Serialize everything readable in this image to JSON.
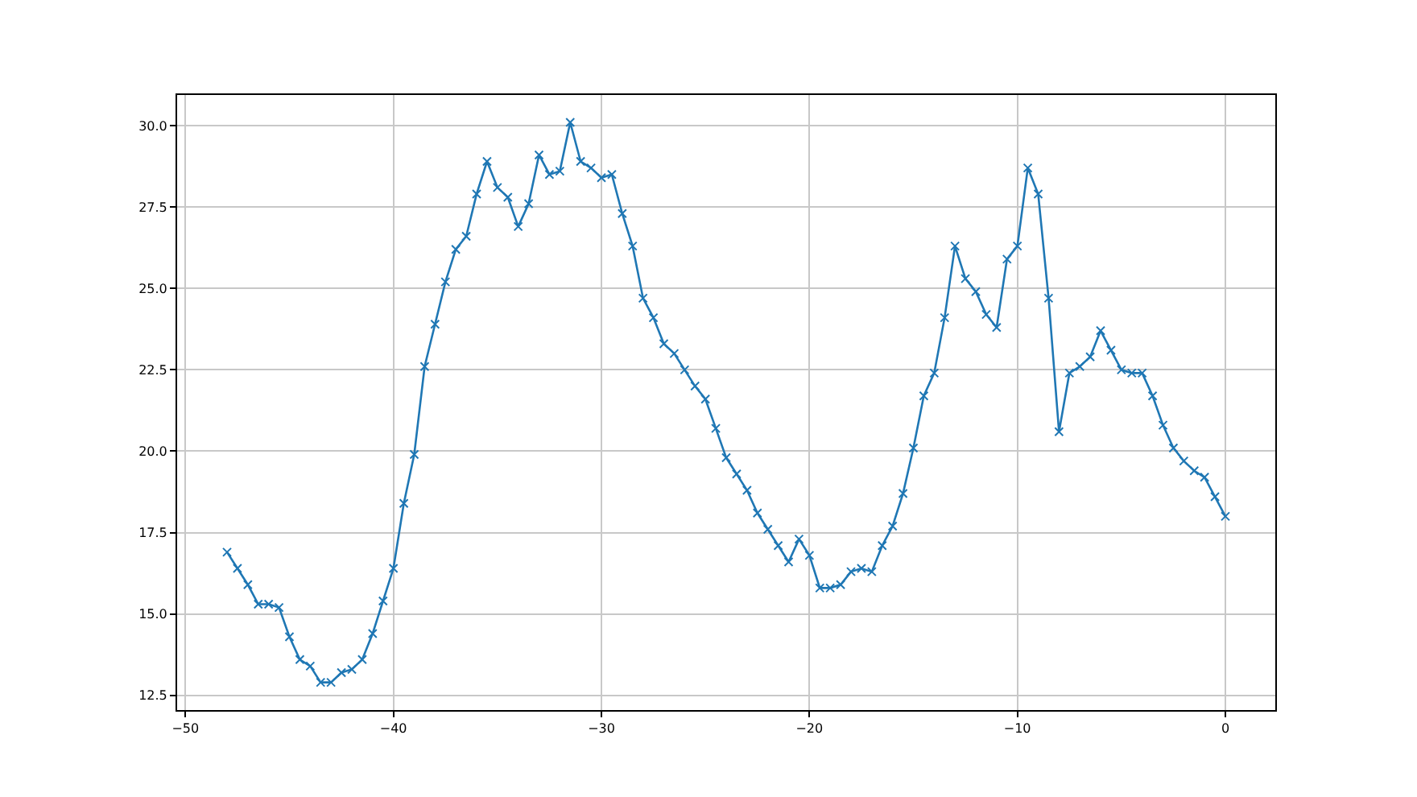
{
  "chart_data": {
    "type": "line",
    "x": [
      -48,
      -47.5,
      -47,
      -46.5,
      -46,
      -45.5,
      -45,
      -44.5,
      -44,
      -43.5,
      -43,
      -42.5,
      -42,
      -41.5,
      -41,
      -40.5,
      -40,
      -39.5,
      -39,
      -38.5,
      -38,
      -37.5,
      -37,
      -36.5,
      -36,
      -35.5,
      -35,
      -34.5,
      -34,
      -33.5,
      -33,
      -32.5,
      -32,
      -31.5,
      -31,
      -30.5,
      -30,
      -29.5,
      -29,
      -28.5,
      -28,
      -27.5,
      -27,
      -26.5,
      -26,
      -25.5,
      -25,
      -24.5,
      -24,
      -23.5,
      -23,
      -22.5,
      -22,
      -21.5,
      -21,
      -20.5,
      -20,
      -19.5,
      -19,
      -18.5,
      -18,
      -17.5,
      -17,
      -16.5,
      -16,
      -15.5,
      -15,
      -14.5,
      -14,
      -13.5,
      -13,
      -12.5,
      -12,
      -11.5,
      -11,
      -10.5,
      -10,
      -9.5,
      -9,
      -8.5,
      -8,
      -7.5,
      -7,
      -6.5,
      -6,
      -5.5,
      -5,
      -4.5,
      -4,
      -3.5,
      -3,
      -2.5,
      -2,
      -1.5,
      -1,
      -0.5,
      0
    ],
    "series": [
      {
        "color": "#1f77b4",
        "values": [
          16.9,
          16.4,
          15.9,
          15.3,
          15.3,
          15.2,
          14.3,
          13.6,
          13.4,
          12.9,
          12.9,
          13.2,
          13.3,
          13.6,
          14.4,
          15.4,
          16.4,
          18.4,
          19.9,
          22.6,
          23.9,
          25.2,
          26.2,
          26.6,
          27.9,
          28.9,
          28.1,
          27.8,
          26.9,
          27.6,
          29.1,
          28.5,
          28.6,
          30.1,
          28.9,
          28.7,
          28.4,
          28.5,
          27.3,
          26.3,
          24.7,
          24.1,
          23.3,
          23.0,
          22.5,
          22.0,
          21.6,
          20.7,
          19.8,
          19.3,
          18.8,
          18.1,
          17.6,
          17.1,
          16.6,
          17.3,
          16.8,
          15.8,
          15.8,
          15.9,
          16.3,
          16.4,
          16.3,
          17.1,
          17.7,
          18.7,
          20.1,
          21.7,
          22.4,
          24.1,
          26.3,
          25.3,
          24.9,
          24.2,
          23.8,
          25.9,
          26.3,
          28.7,
          27.9,
          24.7,
          20.6,
          22.4,
          22.6,
          22.9,
          23.7,
          23.1,
          22.5,
          22.4,
          22.4,
          21.7,
          20.8,
          20.1,
          19.7,
          19.4,
          19.2,
          18.6,
          18.0
        ]
      }
    ],
    "xlim": [
      -50.4,
      2.4
    ],
    "xticks": [
      {
        "value": -50,
        "label": "−50"
      },
      {
        "value": -40,
        "label": "−40"
      },
      {
        "value": -30,
        "label": "−30"
      },
      {
        "value": -20,
        "label": "−20"
      },
      {
        "value": -10,
        "label": "−10"
      },
      0
    ],
    "ylim": [
      12.05,
      30.94
    ],
    "yticks": [
      {
        "value": 12.5,
        "label": "12.5"
      },
      {
        "value": 15,
        "label": "15.0"
      },
      {
        "value": 17.5,
        "label": "17.5"
      },
      {
        "value": 20,
        "label": "20.0"
      },
      {
        "value": 22.5,
        "label": "22.5"
      },
      {
        "value": 25,
        "label": "25.0"
      },
      {
        "value": 27.5,
        "label": "27.5"
      },
      {
        "value": 30,
        "label": "30.0"
      }
    ],
    "grid": true,
    "marker": "cross",
    "line_style": "solid"
  }
}
